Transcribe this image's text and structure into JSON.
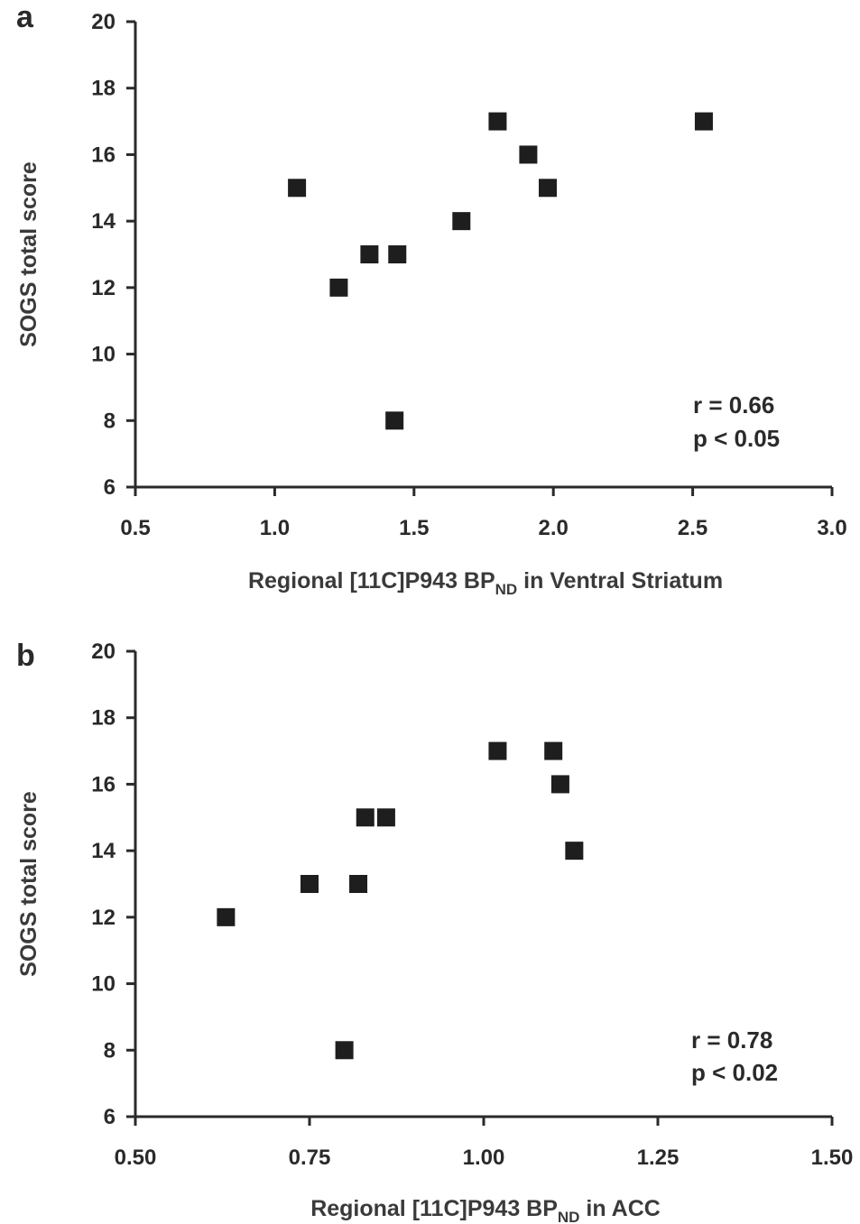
{
  "chart_data": [
    {
      "type": "scatter",
      "panel_label": "a",
      "xlabel": {
        "pre": "Regional [11C]P943 BP",
        "sub": "ND",
        "post": " in Ventral Striatum"
      },
      "ylabel": "SOGS total score",
      "xlim": [
        0.5,
        3.0
      ],
      "ylim": [
        6,
        20
      ],
      "xticks": [
        "0.5",
        "1.0",
        "1.5",
        "2.0",
        "2.5",
        "3.0"
      ],
      "yticks": [
        "6",
        "8",
        "10",
        "12",
        "14",
        "16",
        "18",
        "20"
      ],
      "points": [
        {
          "x": 1.08,
          "y": 15
        },
        {
          "x": 1.23,
          "y": 12
        },
        {
          "x": 1.34,
          "y": 13
        },
        {
          "x": 1.44,
          "y": 13
        },
        {
          "x": 1.43,
          "y": 8
        },
        {
          "x": 1.67,
          "y": 14
        },
        {
          "x": 1.8,
          "y": 17
        },
        {
          "x": 1.91,
          "y": 16
        },
        {
          "x": 1.98,
          "y": 15
        },
        {
          "x": 2.54,
          "y": 17
        }
      ],
      "annotation": [
        "r = 0.66",
        "p < 0.05"
      ],
      "marker_color": "#1e1e1e"
    },
    {
      "type": "scatter",
      "panel_label": "b",
      "xlabel": {
        "pre": "Regional [11C]P943 BP",
        "sub": "ND",
        "post": " in ACC"
      },
      "ylabel": "SOGS total score",
      "xlim": [
        0.5,
        1.5
      ],
      "ylim": [
        6,
        20
      ],
      "xticks": [
        "0.50",
        "0.75",
        "1.00",
        "1.25",
        "1.50"
      ],
      "yticks": [
        "6",
        "8",
        "10",
        "12",
        "14",
        "16",
        "18",
        "20"
      ],
      "points": [
        {
          "x": 0.63,
          "y": 12
        },
        {
          "x": 0.75,
          "y": 13
        },
        {
          "x": 0.8,
          "y": 8
        },
        {
          "x": 0.82,
          "y": 13
        },
        {
          "x": 0.83,
          "y": 15
        },
        {
          "x": 0.86,
          "y": 15
        },
        {
          "x": 1.02,
          "y": 17
        },
        {
          "x": 1.1,
          "y": 17
        },
        {
          "x": 1.11,
          "y": 16
        },
        {
          "x": 1.13,
          "y": 14
        }
      ],
      "annotation": [
        "r = 0.78",
        "p < 0.02"
      ],
      "marker_color": "#1e1e1e"
    }
  ]
}
